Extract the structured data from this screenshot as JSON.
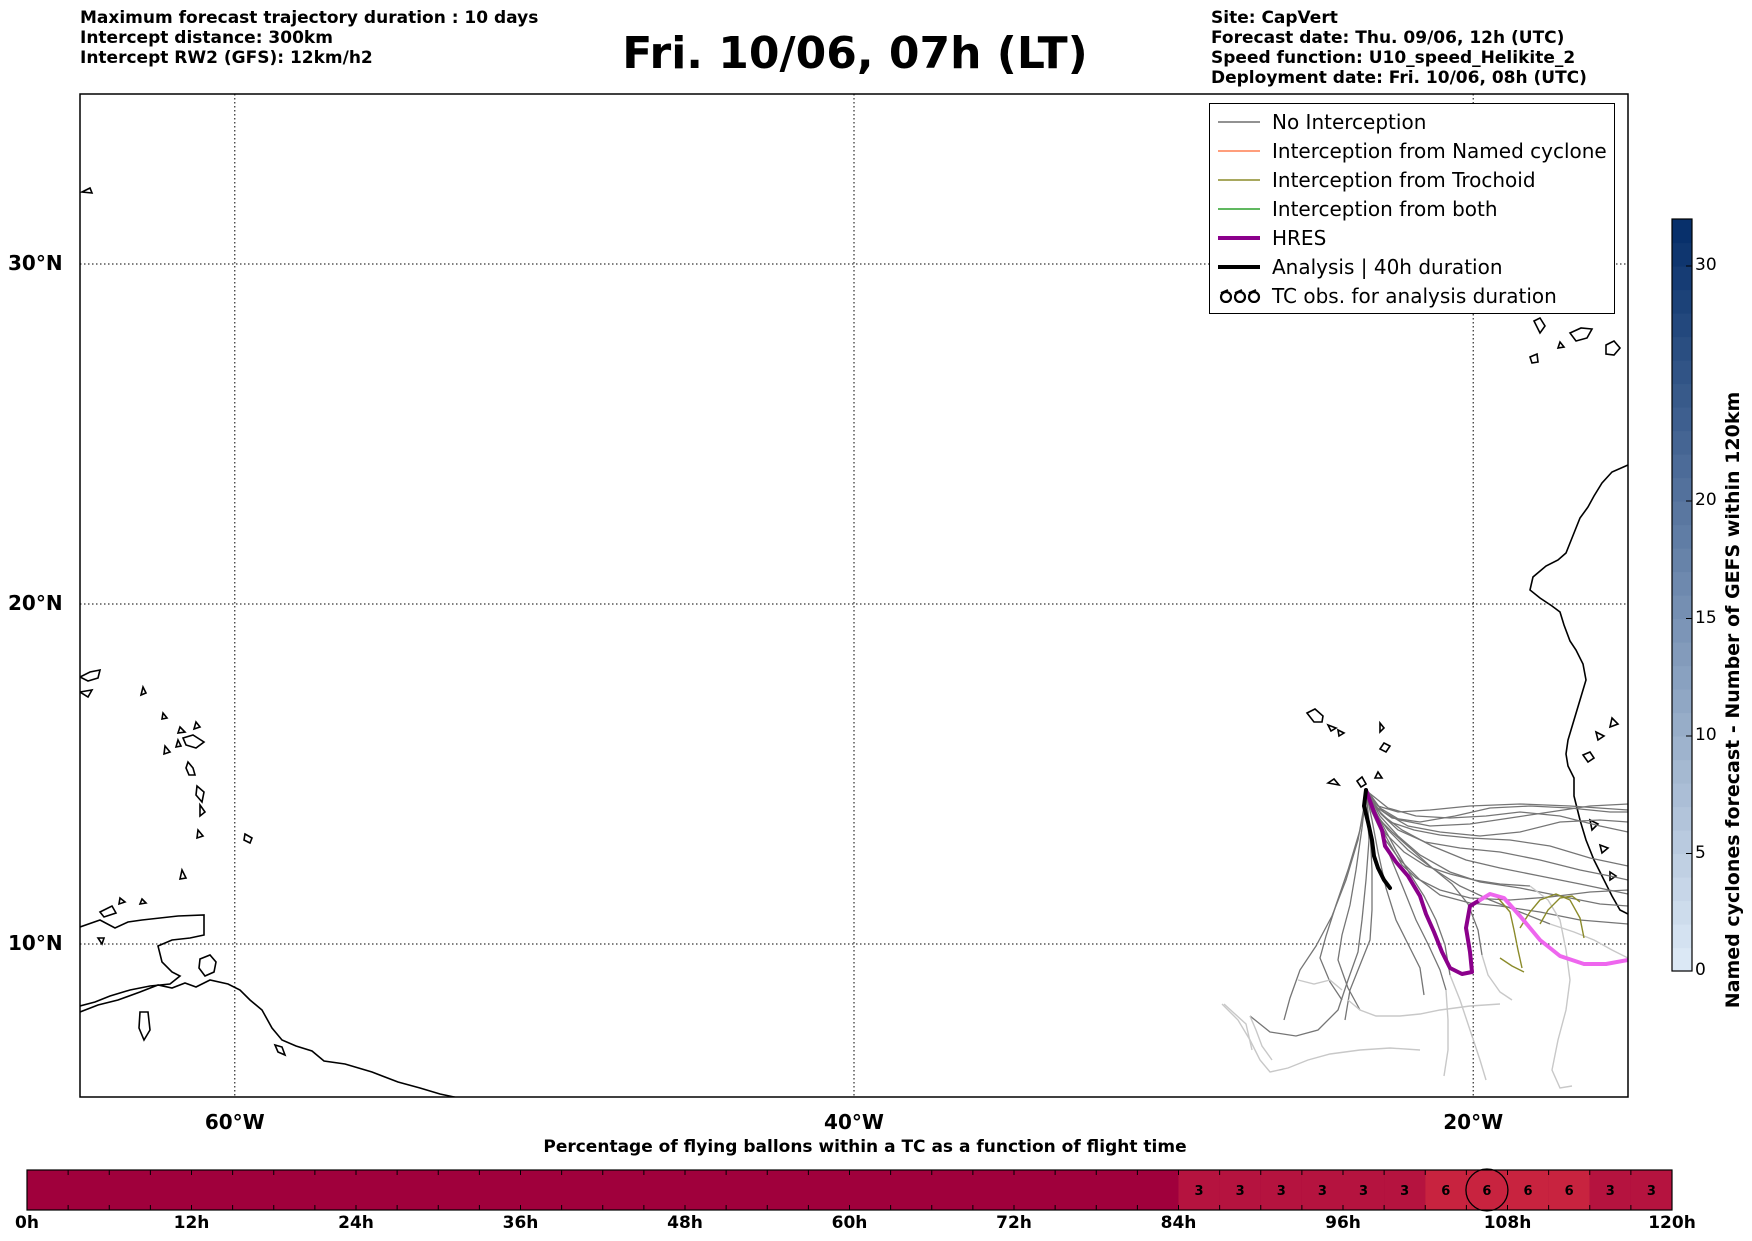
{
  "header": {
    "left_lines": [
      "Maximum forecast trajectory duration : 10 days",
      "Intercept distance: 300km",
      "Intercept RW2 (GFS):  12km/h2"
    ],
    "title": "Fri. 10/06, 07h (LT)",
    "right_lines": [
      "Site: CapVert",
      "Forecast date: Thu. 09/06, 12h (UTC)",
      "Speed function: U10_speed_Helikite_2",
      "Deployment date: Fri. 10/06, 08h (UTC)"
    ]
  },
  "map": {
    "extent": {
      "lon_min": -65,
      "lon_max": -15,
      "lat_min": 5.5,
      "lat_max": 35
    },
    "lat_ticks": [
      {
        "value": 30,
        "label": "30°N"
      },
      {
        "value": 20,
        "label": "20°N"
      },
      {
        "value": 10,
        "label": "10°N"
      }
    ],
    "lon_ticks": [
      {
        "value": -60,
        "label": "60°W"
      },
      {
        "value": -40,
        "label": "40°W"
      },
      {
        "value": -20,
        "label": "20°W"
      }
    ],
    "grid": "dotted",
    "colors": {
      "no_interception": "#6e6e6e",
      "late_member": "#c8c8c8",
      "named_cyclone": "#ff7f50",
      "trochoid": "#8b8b2a",
      "both": "#2ca02c",
      "hres": "#8b008b",
      "hres_late": "#ee66ee",
      "analysis": "#000000",
      "coast": "#000000"
    }
  },
  "legend": {
    "placement": "top-right",
    "items": [
      {
        "label": "No Interception",
        "style": "no_interception"
      },
      {
        "label": "Interception from Named cyclone",
        "style": "named_cyclone"
      },
      {
        "label": "Interception from Trochoid",
        "style": "trochoid"
      },
      {
        "label": "Interception from both",
        "style": "both"
      },
      {
        "label": "HRES",
        "style": "hres"
      },
      {
        "label": "Analysis | 40h duration",
        "style": "analysis"
      },
      {
        "label": "TC obs. for analysis duration",
        "style": "tc_obs"
      }
    ]
  },
  "colorbar": {
    "label": "Named cyclones forecast - Number of GEFS within 120km",
    "min": 0,
    "max": 32,
    "ticks": [
      "0",
      "5",
      "10",
      "15",
      "20",
      "30"
    ],
    "tick_values": [
      0,
      5,
      10,
      15,
      20,
      30
    ],
    "color_low": "#dbe8f5",
    "color_high": "#08306b"
  },
  "timebar": {
    "title": "Percentage of flying ballons within a TC as a function of flight time",
    "ticks": [
      "0h",
      "12h",
      "24h",
      "36h",
      "48h",
      "60h",
      "72h",
      "84h",
      "96h",
      "108h",
      "120h"
    ],
    "max_hours": 120,
    "base_color": "#a0003c",
    "cells": [
      {
        "value": "3",
        "color": "#b5133f"
      },
      {
        "value": "3",
        "color": "#b5133f"
      },
      {
        "value": "3",
        "color": "#b5133f"
      },
      {
        "value": "3",
        "color": "#b5133f"
      },
      {
        "value": "3",
        "color": "#b5133f"
      },
      {
        "value": "3",
        "color": "#b5133f"
      },
      {
        "value": "6",
        "color": "#c8233f"
      },
      {
        "value": "6",
        "color": "#c8233f"
      },
      {
        "value": "6",
        "color": "#c8233f"
      },
      {
        "value": "6",
        "color": "#c8233f"
      },
      {
        "value": "3",
        "color": "#b5133f"
      },
      {
        "value": "3",
        "color": "#b5133f"
      }
    ],
    "highlighted_cell_hour": 106.5,
    "cells_start_hour": 84,
    "cell_hours": 3
  }
}
